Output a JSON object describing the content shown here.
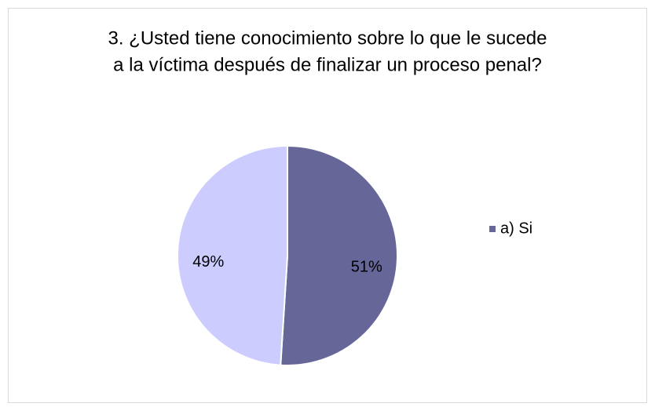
{
  "chart_data": {
    "type": "pie",
    "title": [
      "3. ¿Usted tiene conocimiento sobre lo que le sucede",
      "a la víctima después de finalizar un proceso penal?"
    ],
    "categories": [
      "a) Si",
      null
    ],
    "values": [
      51,
      49
    ],
    "value_labels": [
      "51%",
      "49%"
    ],
    "colors": [
      "#666699",
      "#ccccff"
    ],
    "legend": "right"
  }
}
